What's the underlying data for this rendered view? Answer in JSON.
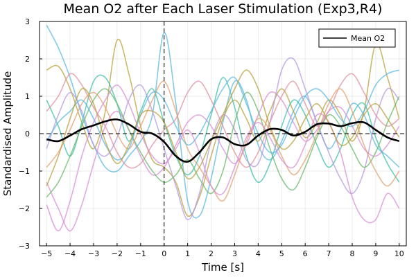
{
  "chart_data": {
    "type": "line",
    "title": "Mean O2 after Each Laser Stimulation (Exp3,R4)",
    "xlabel": "Time [s]",
    "ylabel": "Standardised Amplitude",
    "xlim": [
      -5.3,
      10.3
    ],
    "ylim": [
      -3,
      3
    ],
    "xticks": [
      -5,
      -4,
      -3,
      -2,
      -1,
      0,
      1,
      2,
      3,
      4,
      5,
      6,
      7,
      8,
      9,
      10
    ],
    "yticks": [
      -3,
      -2,
      -1,
      0,
      1,
      2,
      3
    ],
    "grid": true,
    "legend_position": "top-right",
    "reference_lines": {
      "vertical_x": 0,
      "horizontal_y": 0,
      "style": "dashed"
    },
    "trial_colors": [
      "#59b8e0",
      "#d88dd4",
      "#b8a03c",
      "#3cbfa8",
      "#b49ae0",
      "#e28f9e",
      "#6ab86a",
      "#e2a070"
    ],
    "series": [
      {
        "name": "Mean O2",
        "color": "#000000",
        "x": [
          -5,
          -4.5,
          -4,
          -3.5,
          -3,
          -2.5,
          -2,
          -1.5,
          -1,
          -0.5,
          0,
          0.5,
          1,
          1.5,
          2,
          2.5,
          3,
          3.5,
          4,
          4.5,
          5,
          5.5,
          6,
          6.5,
          7,
          7.5,
          8,
          8.5,
          9,
          9.5,
          10
        ],
        "values": [
          -0.15,
          -0.2,
          -0.05,
          0.12,
          0.22,
          0.33,
          0.38,
          0.25,
          0.05,
          0.0,
          -0.22,
          -0.6,
          -0.75,
          -0.5,
          -0.15,
          -0.1,
          -0.28,
          -0.3,
          -0.05,
          0.12,
          0.1,
          -0.05,
          0.05,
          0.25,
          0.27,
          0.2,
          0.28,
          0.3,
          0.1,
          -0.1,
          -0.2
        ]
      },
      {
        "x": [
          -5,
          -4.5,
          -4,
          -3.5,
          -3,
          -2.5,
          -2,
          -1.5,
          -1,
          -0.5,
          0,
          0.5,
          1,
          1.5,
          2,
          2.5,
          3,
          3.5,
          4,
          4.5,
          5,
          5.5,
          6,
          6.5,
          7,
          7.5,
          8,
          8.5,
          9,
          9.5,
          10
        ],
        "values": [
          2.9,
          2.3,
          1.5,
          0.5,
          -0.3,
          -0.9,
          -1.0,
          -0.6,
          -0.2,
          0.5,
          2.7,
          0.8,
          -1.8,
          -2.2,
          -1.2,
          0.3,
          1.4,
          0.9,
          -0.3,
          -0.7,
          -0.2,
          0.6,
          1.0,
          0.3,
          -0.4,
          0.1,
          0.8,
          0.5,
          -0.3,
          -0.6,
          -0.9
        ]
      },
      {
        "x": [
          -5,
          -4.5,
          -4,
          -3.5,
          -3,
          -2.5,
          -2,
          -1.5,
          -1,
          -0.5,
          0,
          0.5,
          1,
          1.5,
          2,
          2.5,
          3,
          3.5,
          4,
          4.5,
          5,
          5.5,
          6,
          6.5,
          7,
          7.5,
          8,
          8.5,
          9,
          9.5,
          10
        ],
        "values": [
          -1.3,
          -2.0,
          -2.6,
          -1.9,
          -0.8,
          0.2,
          0.6,
          0.1,
          -0.6,
          -1.1,
          -0.9,
          -0.3,
          0.3,
          0.5,
          0.2,
          -0.4,
          -0.8,
          -0.3,
          0.5,
          1.1,
          0.9,
          0.3,
          -0.2,
          0.1,
          0.6,
          0.7,
          0.2,
          -0.4,
          -0.6,
          -0.3,
          0.2
        ]
      },
      {
        "x": [
          -5,
          -4.5,
          -4,
          -3.5,
          -3,
          -2.5,
          -2,
          -1.5,
          -1,
          -0.5,
          0,
          0.5,
          1,
          1.5,
          2,
          2.5,
          3,
          3.5,
          4,
          4.5,
          5,
          5.5,
          6,
          6.5,
          7,
          7.5,
          8,
          8.5,
          9,
          9.5,
          10
        ],
        "values": [
          1.7,
          1.8,
          1.2,
          0.3,
          -0.4,
          0.6,
          2.5,
          1.6,
          0.2,
          -0.7,
          -0.9,
          -1.3,
          -2.2,
          -1.7,
          -0.6,
          0.4,
          0.9,
          0.4,
          -0.2,
          0.6,
          1.2,
          0.6,
          -0.1,
          0.3,
          0.9,
          0.5,
          -0.2,
          0.6,
          2.4,
          1.5,
          0.4
        ]
      },
      {
        "x": [
          -5,
          -4.5,
          -4,
          -3.5,
          -3,
          -2.5,
          -2,
          -1.5,
          -1,
          -0.5,
          0,
          0.5,
          1,
          1.5,
          2,
          2.5,
          3,
          3.5,
          4,
          4.5,
          5,
          5.5,
          6,
          6.5,
          7,
          7.5,
          8,
          8.5,
          9,
          9.5,
          10
        ],
        "values": [
          0.9,
          0.2,
          -0.6,
          0.3,
          1.4,
          1.5,
          0.8,
          -0.2,
          0.6,
          1.2,
          0.3,
          -0.6,
          -1.1,
          -0.6,
          0.5,
          1.5,
          0.7,
          -0.6,
          -1.3,
          -0.8,
          0.2,
          0.9,
          0.5,
          -0.3,
          -0.9,
          -0.4,
          0.5,
          0.8,
          -0.1,
          -0.8,
          -1.3
        ]
      },
      {
        "x": [
          -5,
          -4.5,
          -4,
          -3.5,
          -3,
          -2.5,
          -2,
          -1.5,
          -1,
          -0.5,
          0,
          0.5,
          1,
          1.5,
          2,
          2.5,
          3,
          3.5,
          4,
          4.5,
          5,
          5.5,
          6,
          6.5,
          7,
          7.5,
          8,
          8.5,
          9,
          9.5,
          10
        ],
        "values": [
          -0.4,
          0.5,
          1.1,
          0.6,
          -0.3,
          -0.6,
          -0.1,
          0.9,
          1.3,
          0.6,
          -0.4,
          -1.4,
          -2.3,
          -1.6,
          -0.2,
          0.5,
          0.1,
          -0.7,
          -0.8,
          0.3,
          1.7,
          2.0,
          1.2,
          0.3,
          -0.5,
          -1.2,
          -1.6,
          -1.0,
          0.4,
          1.2,
          0.9
        ]
      },
      {
        "x": [
          -5,
          -4.5,
          -4,
          -3.5,
          -3,
          -2.5,
          -2,
          -1.5,
          -1,
          -0.5,
          0,
          0.5,
          1,
          1.5,
          2,
          2.5,
          3,
          3.5,
          4,
          4.5,
          5,
          5.5,
          6,
          6.5,
          7,
          7.5,
          8,
          8.5,
          9,
          9.5,
          10
        ],
        "values": [
          0.6,
          1.0,
          1.6,
          1.3,
          0.7,
          0.2,
          -0.5,
          -0.9,
          -0.8,
          -0.3,
          0.1,
          0.4,
          1.1,
          1.4,
          0.9,
          0.2,
          -0.5,
          -0.9,
          -0.5,
          0.3,
          1.0,
          1.4,
          0.8,
          0.2,
          0.6,
          1.3,
          1.6,
          1.1,
          0.5,
          0.2,
          0.4
        ]
      },
      {
        "x": [
          -5,
          -4.5,
          -4,
          -3.5,
          -3,
          -2.5,
          -2,
          -1.5,
          -1,
          -0.5,
          0,
          0.5,
          1,
          1.5,
          2,
          2.5,
          3,
          3.5,
          4,
          4.5,
          5,
          5.5,
          6,
          6.5,
          7,
          7.5,
          8,
          8.5,
          9,
          9.5,
          10
        ],
        "values": [
          -1.7,
          -1.3,
          -0.6,
          0.2,
          0.9,
          1.2,
          0.8,
          0.1,
          -0.5,
          -1.0,
          -1.3,
          -1.1,
          -0.7,
          -1.2,
          -1.6,
          -1.0,
          0.3,
          1.1,
          0.6,
          -0.4,
          -1.2,
          -1.5,
          -0.9,
          -0.1,
          0.5,
          0.2,
          -0.4,
          -0.9,
          -0.5,
          0.3,
          1.0
        ]
      },
      {
        "x": [
          -5,
          -4.5,
          -4,
          -3.5,
          -3,
          -2.5,
          -2,
          -1.5,
          -1,
          -0.5,
          0,
          0.5,
          1,
          1.5,
          2,
          2.5,
          3,
          3.5,
          4,
          4.5,
          5,
          5.5,
          6,
          6.5,
          7,
          7.5,
          8,
          8.5,
          9,
          9.5,
          10
        ],
        "values": [
          -0.9,
          -0.5,
          0.1,
          0.8,
          1.1,
          0.7,
          0.0,
          -0.4,
          0.2,
          0.9,
          1.4,
          0.6,
          -0.4,
          -0.9,
          -1.4,
          -1.8,
          -1.1,
          -0.2,
          0.4,
          0.1,
          -0.6,
          -1.1,
          -0.7,
          0.0,
          0.8,
          1.2,
          0.6,
          -0.3,
          -1.0,
          -1.4,
          -1.0
        ]
      },
      {
        "x": [
          -5,
          -4.5,
          -4,
          -3.5,
          -3,
          -2.5,
          -2,
          -1.5,
          -1,
          -0.5,
          0,
          0.5,
          1,
          1.5,
          2,
          2.5,
          3,
          3.5,
          4,
          4.5,
          5,
          5.5,
          6,
          6.5,
          7,
          7.5,
          8,
          8.5,
          9,
          9.5,
          10
        ],
        "values": [
          -0.2,
          0.3,
          0.6,
          0.9,
          0.4,
          -0.3,
          -0.7,
          -0.4,
          0.5,
          1.1,
          0.9,
          0.2,
          -0.3,
          0.0,
          0.6,
          1.2,
          1.5,
          0.8,
          0.0,
          -0.5,
          -0.3,
          0.4,
          1.0,
          1.2,
          0.9,
          0.4,
          0.2,
          0.6,
          1.3,
          1.6,
          1.7
        ]
      },
      {
        "x": [
          -5,
          -4.5,
          -4,
          -3.5,
          -3,
          -2.5,
          -2,
          -1.5,
          -1,
          -0.5,
          0,
          0.5,
          1,
          1.5,
          2,
          2.5,
          3,
          3.5,
          4,
          4.5,
          5,
          5.5,
          6,
          6.5,
          7,
          7.5,
          8,
          8.5,
          9,
          9.5,
          10
        ],
        "values": [
          -1.9,
          -2.6,
          -1.8,
          -0.6,
          0.3,
          0.9,
          1.3,
          0.8,
          0.0,
          -0.6,
          -0.8,
          -0.4,
          0.1,
          -0.5,
          -1.4,
          -1.6,
          -0.9,
          -0.1,
          0.3,
          -0.1,
          -0.7,
          -0.9,
          -0.3,
          0.5,
          0.3,
          -0.5,
          -1.7,
          -2.3,
          -2.3,
          -1.6,
          -2.0
        ]
      },
      {
        "x": [
          -5,
          -4.5,
          -4,
          -3.5,
          -3,
          -2.5,
          -2,
          -1.5,
          -1,
          -0.5,
          0,
          0.5,
          1,
          1.5,
          2,
          2.5,
          3,
          3.5,
          4,
          4.5,
          5,
          5.5,
          6,
          6.5,
          7,
          7.5,
          8,
          8.5,
          9,
          9.5,
          10
        ],
        "values": [
          -1.4,
          -0.6,
          0.4,
          1.2,
          0.8,
          -0.2,
          -0.8,
          -0.3,
          0.5,
          0.6,
          0.3,
          -0.5,
          -1.2,
          -0.9,
          -0.2,
          0.5,
          1.2,
          1.7,
          1.2,
          0.2,
          -0.4,
          -0.2,
          0.4,
          0.8,
          0.3,
          -0.3,
          -0.1,
          0.5,
          0.8,
          0.4,
          -0.1
        ]
      }
    ],
    "legend": [
      {
        "label": "Mean O2",
        "color": "#000000"
      }
    ]
  }
}
